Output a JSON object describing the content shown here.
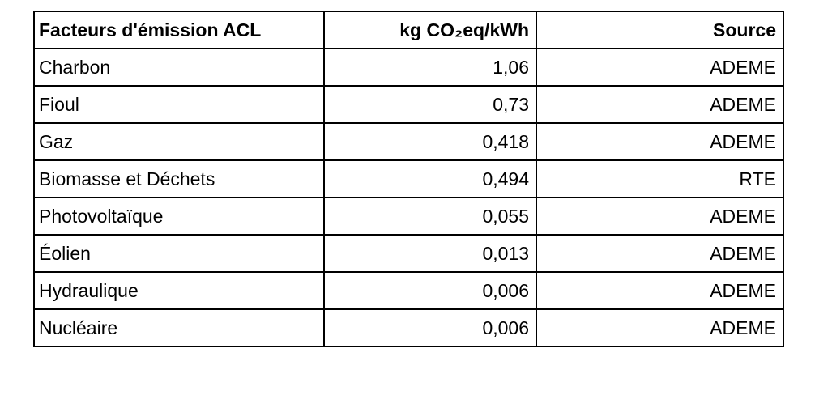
{
  "table": {
    "header": [
      "Facteurs d'émission ACL",
      "kg CO₂eq/kWh",
      "Source"
    ],
    "rows": [
      [
        "Charbon",
        "1,06",
        "ADEME"
      ],
      [
        "Fioul",
        "0,73",
        "ADEME"
      ],
      [
        "Gaz",
        "0,418",
        "ADEME"
      ],
      [
        "Biomasse et Déchets",
        "0,494",
        "RTE"
      ],
      [
        "Photovoltaïque",
        "0,055",
        "ADEME"
      ],
      [
        "Éolien",
        "0,013",
        "ADEME"
      ],
      [
        "Hydraulique",
        "0,006",
        "ADEME"
      ],
      [
        "Nucléaire",
        "0,006",
        "ADEME"
      ]
    ]
  }
}
